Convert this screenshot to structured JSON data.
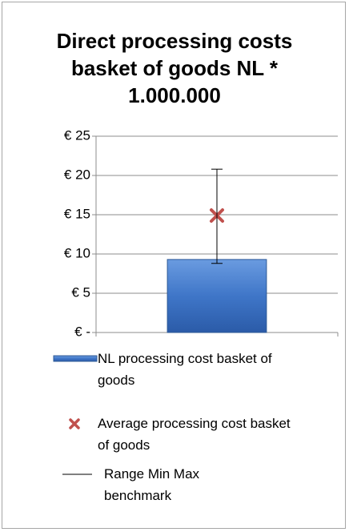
{
  "chart_data": {
    "type": "bar",
    "title": "Direct processing costs basket of goods NL * 1.000.000",
    "categories": [
      null
    ],
    "series": [
      {
        "name": "NL processing cost basket of goods",
        "type": "bar",
        "color": "#4f81bd",
        "values": [
          9.3
        ]
      },
      {
        "name": "Average processing cost basket of goods",
        "type": "scatter",
        "color": "#c0504d",
        "values": [
          14.9
        ]
      },
      {
        "name": "Range Min Max benchmark",
        "type": "range",
        "color": "#000000",
        "min": [
          8.8
        ],
        "max": [
          20.8
        ]
      }
    ],
    "ylim": [
      0,
      25
    ],
    "yticks": [
      {
        "value": 0,
        "label": "€ -"
      },
      {
        "value": 5,
        "label": "€ 5"
      },
      {
        "value": 10,
        "label": "€ 10"
      },
      {
        "value": 15,
        "label": "€ 15"
      },
      {
        "value": 20,
        "label": "€ 20"
      },
      {
        "value": 25,
        "label": "€ 25"
      }
    ],
    "grid": true,
    "legend": "bottom"
  }
}
